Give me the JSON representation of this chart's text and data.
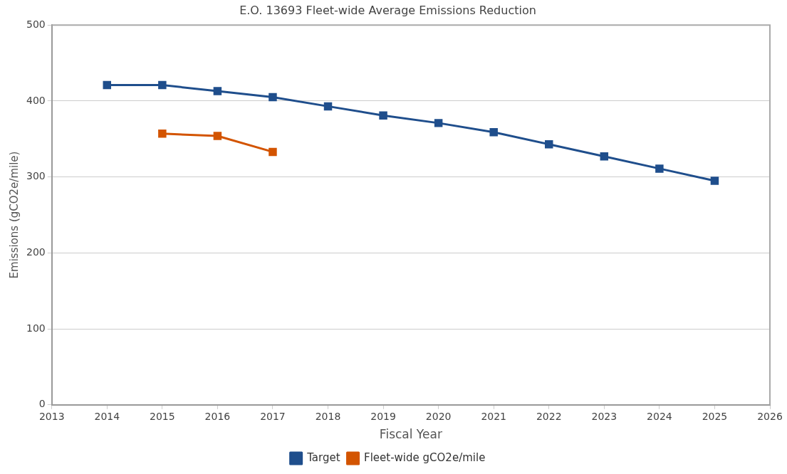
{
  "chart_data": {
    "type": "line",
    "title": "E.O. 13693 Fleet-wide Average Emissions Reduction",
    "xlabel": "Fiscal Year",
    "ylabel": "Emissions (gCO2e/mile)",
    "x": [
      2014,
      2015,
      2016,
      2017,
      2018,
      2019,
      2020,
      2021,
      2022,
      2023,
      2024,
      2025
    ],
    "series": [
      {
        "name": "Target",
        "color": "#1f4e8c",
        "values": [
          421,
          421,
          413,
          405,
          393,
          381,
          371,
          359,
          343,
          327,
          311,
          295
        ]
      },
      {
        "name": "Fleet-wide gCO2e/mile",
        "color": "#d35400",
        "x": [
          2015,
          2016,
          2017
        ],
        "values": [
          357,
          354,
          333
        ]
      }
    ],
    "xlim": [
      2013,
      2026
    ],
    "xticks": [
      2013,
      2014,
      2015,
      2016,
      2017,
      2018,
      2019,
      2020,
      2021,
      2022,
      2023,
      2024,
      2025,
      2026
    ],
    "ylim": [
      0,
      500
    ],
    "yticks": [
      0,
      100,
      200,
      300,
      400,
      500
    ],
    "grid": "y",
    "legend": "bottom",
    "marker": "square",
    "line_style": "solid"
  }
}
